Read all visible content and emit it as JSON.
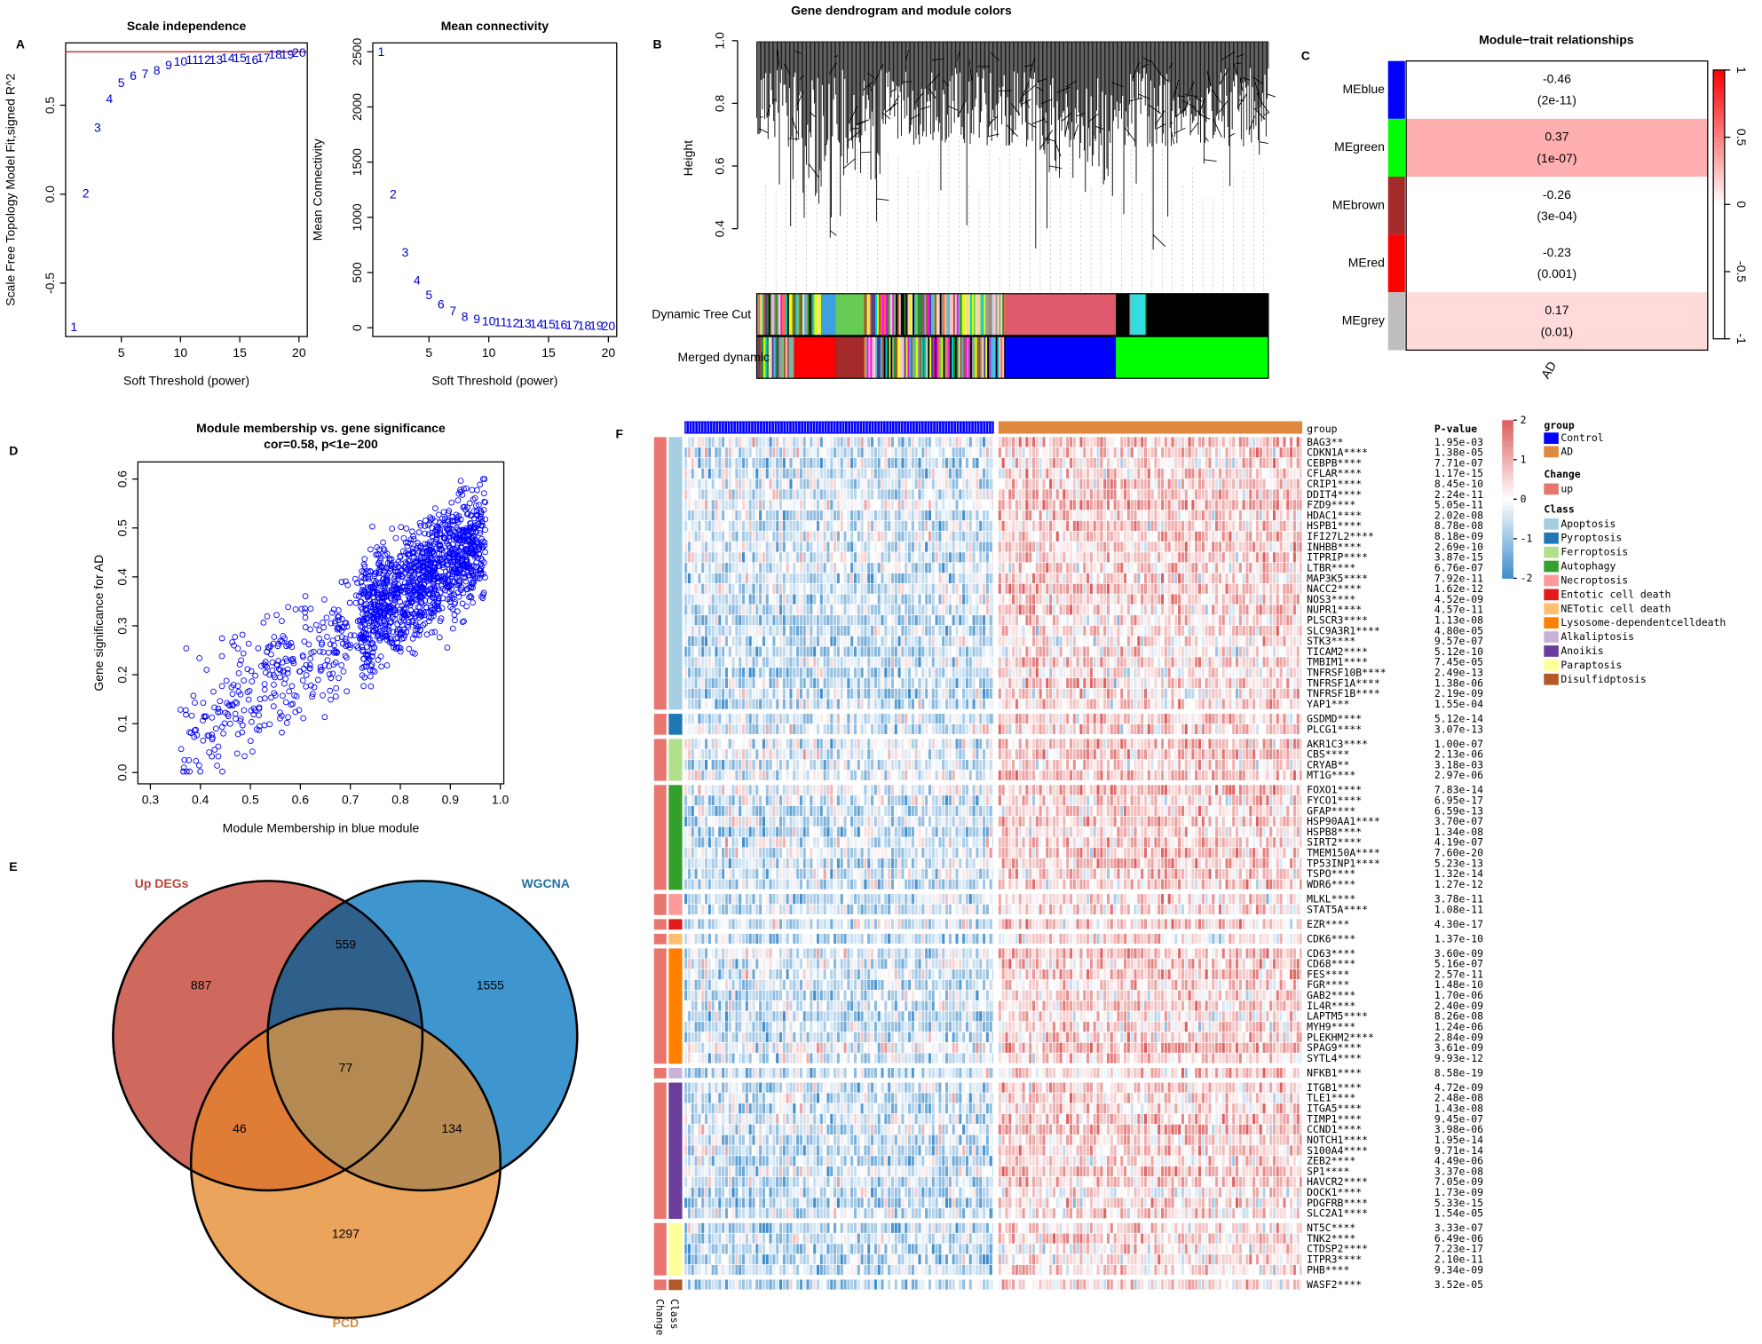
{
  "chart_data": [
    {
      "type": "scatter",
      "panel": "A",
      "markers": "text",
      "title": "Scale independence",
      "x_label": "Soft Threshold (power)",
      "y_label": "Scale Free Topology Model Fit,signed R^2",
      "x": [
        1,
        2,
        3,
        4,
        5,
        6,
        7,
        8,
        9,
        10,
        11,
        12,
        13,
        14,
        15,
        16,
        17,
        18,
        19,
        20
      ],
      "values": [
        -0.75,
        0.0,
        0.37,
        0.53,
        0.62,
        0.66,
        0.67,
        0.69,
        0.72,
        0.74,
        0.75,
        0.75,
        0.75,
        0.76,
        0.76,
        0.75,
        0.76,
        0.78,
        0.78,
        0.79
      ],
      "color": "#0000cc",
      "hline": 0.8,
      "hline_color": "#c0392b",
      "xlim": [
        0.3,
        20.7
      ],
      "ylim": [
        -0.8,
        0.85
      ],
      "xticks": [
        5,
        10,
        15,
        20
      ],
      "yticks": [
        -0.5,
        {
          "value": 0,
          "label": "0.0"
        },
        0.5
      ]
    },
    {
      "type": "scatter",
      "markers": "text",
      "title": "Mean connectivity",
      "x_label": "Soft Threshold (power)",
      "y_label": "Mean Connectivity",
      "x": [
        1,
        2,
        3,
        4,
        5,
        6,
        7,
        8,
        9,
        10,
        11,
        12,
        13,
        14,
        15,
        16,
        17,
        18,
        19,
        20
      ],
      "values": [
        2490,
        1200,
        676,
        420,
        287,
        205,
        143,
        92,
        72,
        51,
        42,
        36,
        31,
        27,
        23,
        19,
        16,
        13,
        10,
        8
      ],
      "color": "#0000cc",
      "xlim": [
        0.3,
        20.7
      ],
      "ylim": [
        -80,
        2580
      ],
      "xticks": [
        5,
        10,
        15,
        20
      ],
      "yticks": [
        0,
        500,
        1000,
        1500,
        2000,
        2500
      ]
    },
    {
      "type": "dendrogram",
      "panel": "B",
      "title": "Gene dendrogram and module colors",
      "y_label": "Height",
      "ylim": [
        0.2,
        1.0
      ],
      "yticks": [
        0.4,
        0.6,
        0.8,
        {
          "value": 1,
          "label": "1.0"
        }
      ],
      "color_rows": [
        "Dynamic Tree Cut",
        "Merged dynamic"
      ]
    },
    {
      "type": "heatmap",
      "panel": "C",
      "title": "Module−trait relationships",
      "rows": [
        "MEblue",
        "MEgreen",
        "MEbrown",
        "MEred",
        "MEgrey"
      ],
      "row_colors": [
        "#0000ff",
        "#00ff00",
        "#a52a2a",
        "#ff0000",
        "#bebebe"
      ],
      "column": "AD",
      "values": [
        -0.46,
        0.37,
        -0.26,
        -0.23,
        0.17
      ],
      "pvalue_labels": [
        "(2e-11)",
        "(1e-07)",
        "(3e-04)",
        "(0.001)",
        "(0.01)"
      ],
      "zlim": [
        -1,
        1
      ],
      "low_color": "#00ff00",
      "high_color": "#ff0000",
      "colorbar_ticks": [
        1,
        0.5,
        0,
        -0.5,
        -1
      ]
    },
    {
      "type": "scatter",
      "panel": "D",
      "markers": "cloud",
      "title": "Module membership vs. gene significance",
      "subtitle": "cor=0.58, p<1e−200",
      "x_label": "Module Membership in blue module",
      "y_label": "Gene significance for AD",
      "color": "#0000ff",
      "xlim": [
        0.275,
        1.007
      ],
      "ylim": [
        -0.023,
        0.635
      ],
      "xticks": [
        0.3,
        0.4,
        0.5,
        0.6,
        0.7,
        0.8,
        0.9,
        {
          "value": 1,
          "label": "1.0"
        }
      ],
      "yticks": [
        {
          "value": 0,
          "label": "0.0"
        },
        0.1,
        0.2,
        0.3,
        0.4,
        0.5,
        0.6
      ]
    },
    {
      "type": "venn",
      "panel": "E",
      "sets": [
        {
          "name": "Up DEGs",
          "color": "#b5463a",
          "fill": "#cf695e"
        },
        {
          "name": "WGCNA",
          "color": "#1e6fa6",
          "fill": "#3f96cf"
        },
        {
          "name": "PCD",
          "color": "#d9893c",
          "fill": "#eba45b"
        }
      ],
      "regions": {
        "up_only": {
          "value": 887
        },
        "wgcna_only": {
          "value": 1555
        },
        "pcd_only": {
          "value": 1297
        },
        "up_wgcna": {
          "value": 559,
          "color": "#2f5f8b"
        },
        "up_pcd": {
          "value": 46,
          "color": "#df7c35"
        },
        "wgcna_pcd": {
          "value": 134,
          "color": "#b88b54"
        },
        "all": {
          "value": 77,
          "color": "#b48a52"
        }
      }
    },
    {
      "type": "gene_heatmap",
      "panel": "F",
      "group_title": "group",
      "pvalue_header": "P-value",
      "change_title": "Change",
      "class_title": "Class",
      "groups": [
        {
          "name": "Control",
          "color": "#0000ff"
        },
        {
          "name": "AD",
          "color": "#e0893e"
        }
      ],
      "change_levels": [
        {
          "name": "up",
          "color": "#e8766f"
        }
      ],
      "zlim": [
        -2,
        2
      ],
      "low_color": "#3d8cc9",
      "high_color": "#dd5c5c",
      "colorbar_ticks": [
        2,
        1,
        0,
        -1,
        -2
      ],
      "classes": [
        {
          "name": "Apoptosis",
          "color": "#a6cee3",
          "genes": [
            {
              "label": "BAG3**",
              "p": "1.95e-03"
            },
            {
              "label": "CDKN1A****",
              "p": "1.38e-05"
            },
            {
              "label": "CEBPB****",
              "p": "7.71e-07"
            },
            {
              "label": "CFLAR****",
              "p": "1.17e-15"
            },
            {
              "label": "CRIP1****",
              "p": "8.45e-10"
            },
            {
              "label": "DDIT4****",
              "p": "2.24e-11"
            },
            {
              "label": "FZD9****",
              "p": "5.05e-11"
            },
            {
              "label": "HDAC1****",
              "p": "2.02e-08"
            },
            {
              "label": "HSPB1****",
              "p": "8.78e-08"
            },
            {
              "label": "IFI27L2****",
              "p": "8.18e-09"
            },
            {
              "label": "INHBB****",
              "p": "2.69e-10"
            },
            {
              "label": "ITPRIP****",
              "p": "3.87e-15"
            },
            {
              "label": "LTBR****",
              "p": "6.76e-07"
            },
            {
              "label": "MAP3K5****",
              "p": "7.92e-11"
            },
            {
              "label": "NACC2****",
              "p": "1.62e-12"
            },
            {
              "label": "NOS3****",
              "p": "4.52e-09"
            },
            {
              "label": "NUPR1****",
              "p": "4.57e-11"
            },
            {
              "label": "PLSCR3****",
              "p": "1.13e-08"
            },
            {
              "label": "SLC9A3R1****",
              "p": "4.80e-05"
            },
            {
              "label": "STK3****",
              "p": "9.57e-07"
            },
            {
              "label": "TICAM2****",
              "p": "5.12e-10"
            },
            {
              "label": "TMBIM1****",
              "p": "7.45e-05"
            },
            {
              "label": "TNFRSF10B****",
              "p": "2.49e-13"
            },
            {
              "label": "TNFRSF1A****",
              "p": "1.38e-06"
            },
            {
              "label": "TNFRSF1B****",
              "p": "2.19e-09"
            },
            {
              "label": "YAP1***",
              "p": "1.55e-04"
            }
          ]
        },
        {
          "name": "Pyroptosis",
          "color": "#1f78b4",
          "genes": [
            {
              "label": "GSDMD****",
              "p": "5.12e-14"
            },
            {
              "label": "PLCG1****",
              "p": "3.07e-13"
            }
          ]
        },
        {
          "name": "Ferroptosis",
          "color": "#b2df8a",
          "genes": [
            {
              "label": "AKR1C3****",
              "p": "1.00e-07"
            },
            {
              "label": "CBS****",
              "p": "2.13e-06"
            },
            {
              "label": "CRYAB**",
              "p": "3.18e-03"
            },
            {
              "label": "MT1G****",
              "p": "2.97e-06"
            }
          ]
        },
        {
          "name": "Autophagy",
          "color": "#33a02c",
          "genes": [
            {
              "label": "FOXO1****",
              "p": "7.83e-14"
            },
            {
              "label": "FYCO1****",
              "p": "6.95e-17"
            },
            {
              "label": "GFAP****",
              "p": "6.59e-13"
            },
            {
              "label": "HSP90AA1****",
              "p": "3.70e-07"
            },
            {
              "label": "HSPB8****",
              "p": "1.34e-08"
            },
            {
              "label": "SIRT2****",
              "p": "4.19e-07"
            },
            {
              "label": "TMEM150A****",
              "p": "7.60e-20"
            },
            {
              "label": "TP53INP1****",
              "p": "5.23e-13"
            },
            {
              "label": "TSPO****",
              "p": "1.32e-14"
            },
            {
              "label": "WDR6****",
              "p": "1.27e-12"
            }
          ]
        },
        {
          "name": "Necroptosis",
          "color": "#fb9a99",
          "genes": [
            {
              "label": "MLKL****",
              "p": "3.78e-11"
            },
            {
              "label": "STAT5A****",
              "p": "1.08e-11"
            }
          ]
        },
        {
          "name": "Entotic cell death",
          "color": "#e31a1c",
          "genes": [
            {
              "label": "EZR****",
              "p": "4.30e-17"
            }
          ]
        },
        {
          "name": "NETotic cell death",
          "color": "#fdbf6f",
          "genes": [
            {
              "label": "CDK6****",
              "p": "1.37e-10"
            }
          ]
        },
        {
          "name": "Lysosome-dependentcelldeath",
          "color": "#ff7f00",
          "genes": [
            {
              "label": "CD63****",
              "p": "3.60e-09"
            },
            {
              "label": "CD68****",
              "p": "5.16e-07"
            },
            {
              "label": "FES****",
              "p": "2.57e-11"
            },
            {
              "label": "FGR****",
              "p": "1.48e-10"
            },
            {
              "label": "GAB2****",
              "p": "1.70e-06"
            },
            {
              "label": "IL4R****",
              "p": "2.40e-09"
            },
            {
              "label": "LAPTM5****",
              "p": "8.26e-08"
            },
            {
              "label": "MYH9****",
              "p": "1.24e-06"
            },
            {
              "label": "PLEKHM2****",
              "p": "2.84e-09"
            },
            {
              "label": "SPAG9****",
              "p": "3.61e-09"
            },
            {
              "label": "SYTL4****",
              "p": "9.93e-12"
            }
          ]
        },
        {
          "name": "Alkaliptosis",
          "color": "#cab2d6",
          "genes": [
            {
              "label": "NFKB1****",
              "p": "8.58e-19"
            }
          ]
        },
        {
          "name": "Anoikis",
          "color": "#6a3d9a",
          "genes": [
            {
              "label": "ITGB1****",
              "p": "4.72e-09"
            },
            {
              "label": "TLE1****",
              "p": "2.48e-08"
            },
            {
              "label": "ITGA5****",
              "p": "1.43e-08"
            },
            {
              "label": "TIMP1****",
              "p": "9.45e-07"
            },
            {
              "label": "CCND1****",
              "p": "3.98e-06"
            },
            {
              "label": "NOTCH1****",
              "p": "1.95e-14"
            },
            {
              "label": "S100A4****",
              "p": "9.71e-14"
            },
            {
              "label": "ZEB2****",
              "p": "4.49e-06"
            },
            {
              "label": "SP1****",
              "p": "3.37e-08"
            },
            {
              "label": "HAVCR2****",
              "p": "7.05e-09"
            },
            {
              "label": "DOCK1****",
              "p": "1.73e-09"
            },
            {
              "label": "PDGFRB****",
              "p": "5.33e-15"
            },
            {
              "label": "SLC2A1****",
              "p": "1.54e-05"
            }
          ]
        },
        {
          "name": "Paraptosis",
          "color": "#ffff99",
          "genes": [
            {
              "label": "NT5C****",
              "p": "3.33e-07"
            },
            {
              "label": "TNK2****",
              "p": "6.49e-06"
            },
            {
              "label": "CTDSP2****",
              "p": "7.23e-17"
            },
            {
              "label": "ITPR3****",
              "p": "2.10e-11"
            },
            {
              "label": "PHB****",
              "p": "9.34e-09"
            }
          ]
        },
        {
          "name": "Disulfidptosis",
          "color": "#b15928",
          "genes": [
            {
              "label": "WASF2****",
              "p": "3.52e-05"
            }
          ]
        }
      ]
    }
  ]
}
